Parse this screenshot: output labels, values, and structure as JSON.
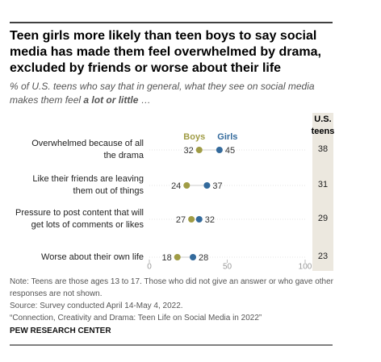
{
  "chart_data": {
    "type": "dot",
    "title": "Teen girls more likely than teen boys to say social media has made them feel overwhelmed by drama, excluded by friends or worse about their life",
    "subtitle": "% of U.S. teens who say that in general, what they see on social media makes them feel",
    "subtitle_emphasis": "a lot or little",
    "subtitle_end": "…",
    "categories": [
      "Overwhelmed because of all\nthe drama",
      "Like their friends are leaving\nthem out of things",
      "Pressure to post content that will\nget lots of comments or likes",
      "Worse about their own life"
    ],
    "series": [
      {
        "name": "Boys",
        "color": "#a09c45",
        "values": [
          32,
          24,
          27,
          18
        ]
      },
      {
        "name": "Girls",
        "color": "#336a9c",
        "values": [
          45,
          37,
          32,
          28
        ]
      }
    ],
    "total_column": {
      "title": "U.S.\nteens",
      "values": [
        38,
        31,
        29,
        23
      ]
    },
    "xlim": [
      0,
      100
    ],
    "xticks": [
      0,
      50,
      100
    ],
    "notes": [
      "Note: Teens are those ages 13 to 17. Those who did not give an answer or who gave other responses are not shown.",
      "Source: Survey conducted April 14-May 4, 2022.",
      "“Connection, Creativity and Drama: Teen Life on Social Media in 2022”"
    ],
    "footer": "PEW RESEARCH CENTER"
  }
}
